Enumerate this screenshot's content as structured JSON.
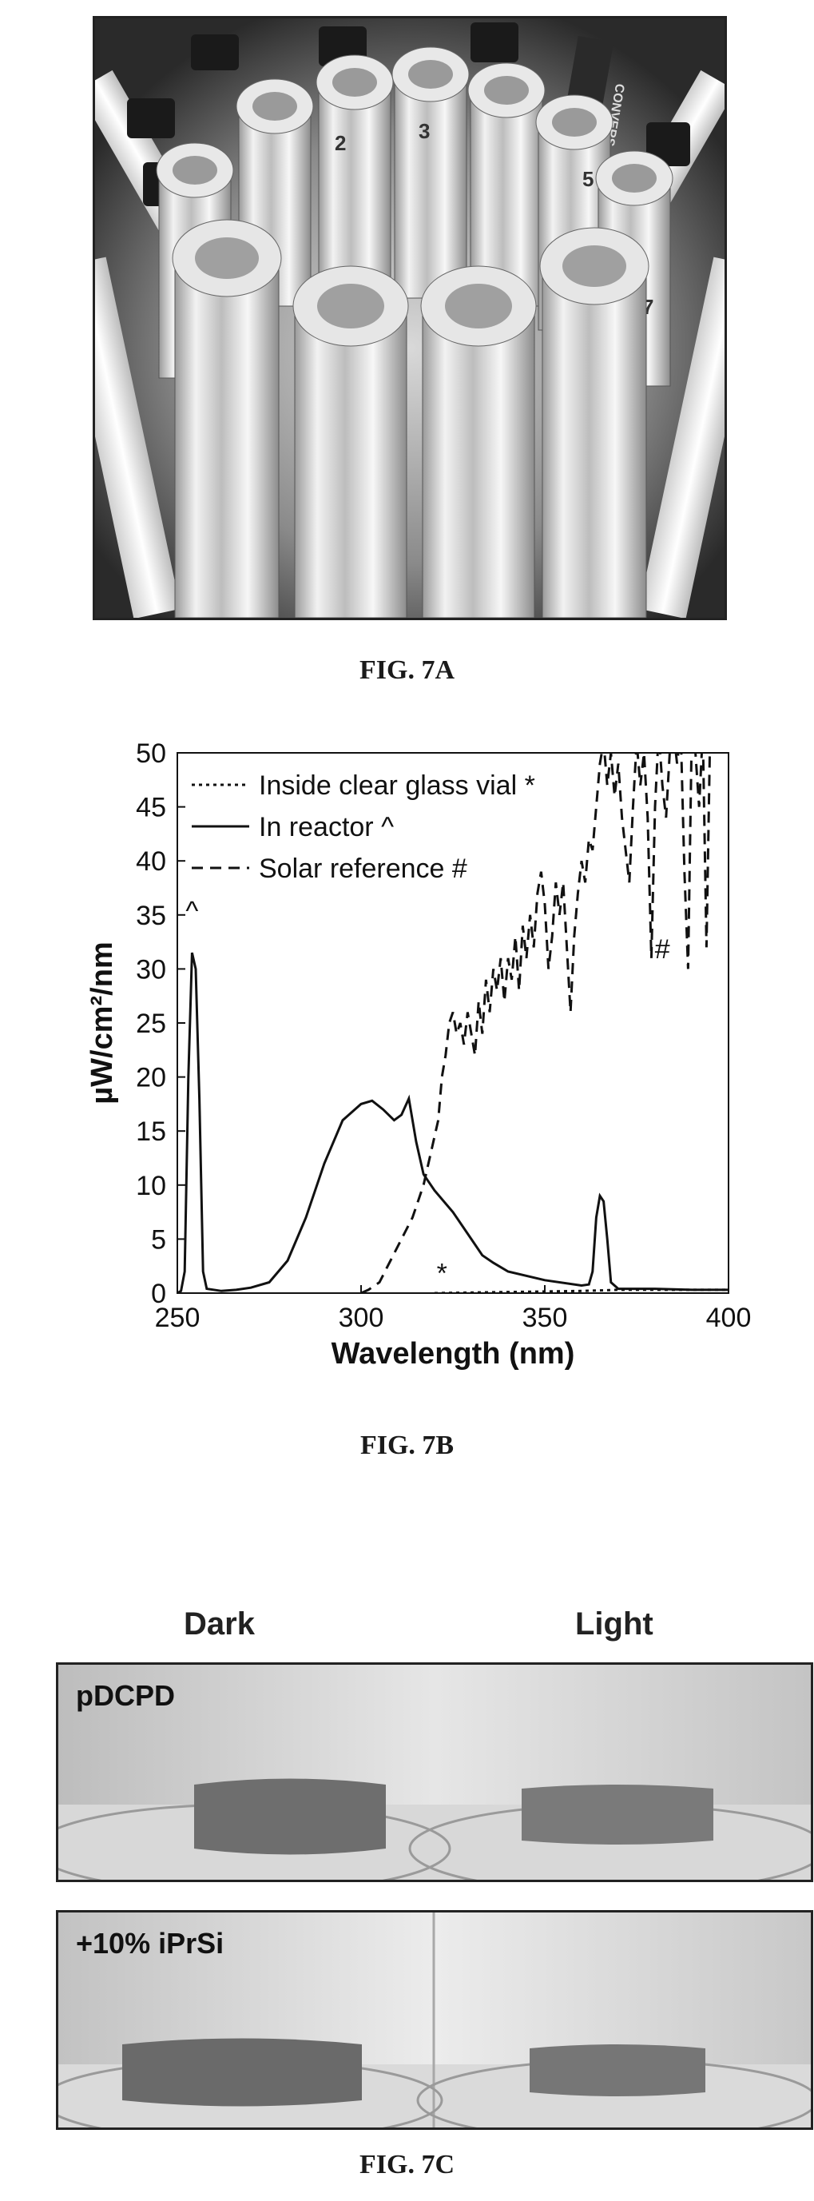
{
  "figure_7a": {
    "caption": "FIG. 7A",
    "vial_numbers": [
      "2",
      "3",
      "5",
      "7"
    ],
    "label_text": "CONVERS"
  },
  "figure_7b": {
    "caption": "FIG. 7B",
    "chart_data": {
      "type": "line",
      "title": "",
      "xlabel": "Wavelength (nm)",
      "ylabel": "µW/cm²/nm",
      "xlim": [
        250,
        400
      ],
      "ylim": [
        0,
        50
      ],
      "x_ticks": [
        250,
        300,
        350,
        400
      ],
      "y_ticks": [
        0,
        5,
        10,
        15,
        20,
        25,
        30,
        35,
        40,
        45,
        50
      ],
      "grid": false,
      "legend_placement": "top-left",
      "series": [
        {
          "name": "Inside clear glass vial *",
          "marker_label": "*",
          "style": "dotted",
          "points": [
            [
              320,
              0
            ],
            [
              340,
              0.1
            ],
            [
              360,
              0.2
            ],
            [
              370,
              0.3
            ],
            [
              380,
              0.3
            ],
            [
              400,
              0.3
            ]
          ]
        },
        {
          "name": "In reactor ^",
          "marker_label": "^",
          "style": "solid",
          "points": [
            [
              250,
              0
            ],
            [
              251,
              0.2
            ],
            [
              252,
              2
            ],
            [
              253,
              20
            ],
            [
              254,
              31.5
            ],
            [
              255,
              30
            ],
            [
              256,
              18
            ],
            [
              257,
              2
            ],
            [
              258,
              0.4
            ],
            [
              262,
              0.2
            ],
            [
              266,
              0.3
            ],
            [
              270,
              0.5
            ],
            [
              275,
              1
            ],
            [
              280,
              3
            ],
            [
              285,
              7
            ],
            [
              290,
              12
            ],
            [
              295,
              16
            ],
            [
              300,
              17.5
            ],
            [
              303,
              17.8
            ],
            [
              306,
              17
            ],
            [
              309,
              16
            ],
            [
              311,
              16.5
            ],
            [
              313,
              18
            ],
            [
              315,
              14
            ],
            [
              317,
              11
            ],
            [
              320,
              9.5
            ],
            [
              325,
              7.5
            ],
            [
              330,
              5
            ],
            [
              333,
              3.5
            ],
            [
              336,
              2.8
            ],
            [
              340,
              2
            ],
            [
              350,
              1.2
            ],
            [
              360,
              0.7
            ],
            [
              362,
              0.8
            ],
            [
              363,
              2
            ],
            [
              364,
              7
            ],
            [
              365,
              9
            ],
            [
              366,
              8.5
            ],
            [
              367,
              5
            ],
            [
              368,
              1
            ],
            [
              370,
              0.4
            ],
            [
              380,
              0.4
            ],
            [
              390,
              0.3
            ],
            [
              400,
              0.3
            ]
          ]
        },
        {
          "name": "Solar reference #",
          "marker_label": "#",
          "style": "dashed",
          "points": [
            [
              300,
              0
            ],
            [
              302,
              0.3
            ],
            [
              305,
              1
            ],
            [
              308,
              3
            ],
            [
              311,
              5
            ],
            [
              314,
              7
            ],
            [
              317,
              10
            ],
            [
              319,
              13
            ],
            [
              321,
              16
            ],
            [
              322,
              20
            ],
            [
              323,
              22
            ],
            [
              324,
              25
            ],
            [
              325,
              26
            ],
            [
              326,
              24
            ],
            [
              327,
              25
            ],
            [
              328,
              23
            ],
            [
              329,
              26
            ],
            [
              330,
              24
            ],
            [
              331,
              22
            ],
            [
              332,
              27
            ],
            [
              333,
              24
            ],
            [
              334,
              29
            ],
            [
              335,
              26
            ],
            [
              336,
              30
            ],
            [
              337,
              28
            ],
            [
              338,
              31
            ],
            [
              339,
              27
            ],
            [
              340,
              31
            ],
            [
              341,
              29
            ],
            [
              342,
              33
            ],
            [
              343,
              28
            ],
            [
              344,
              34
            ],
            [
              345,
              31
            ],
            [
              346,
              35
            ],
            [
              347,
              32
            ],
            [
              348,
              37
            ],
            [
              349,
              39
            ],
            [
              350,
              36
            ],
            [
              351,
              30
            ],
            [
              352,
              33
            ],
            [
              353,
              38
            ],
            [
              354,
              35
            ],
            [
              355,
              38
            ],
            [
              356,
              32
            ],
            [
              357,
              26
            ],
            [
              358,
              33
            ],
            [
              359,
              37
            ],
            [
              360,
              40
            ],
            [
              361,
              38
            ],
            [
              362,
              42
            ],
            [
              363,
              41
            ],
            [
              364,
              45
            ],
            [
              365,
              49
            ],
            [
              366,
              51
            ],
            [
              367,
              47
            ],
            [
              368,
              50
            ],
            [
              369,
              46
            ],
            [
              370,
              49
            ],
            [
              371,
              44
            ],
            [
              372,
              41
            ],
            [
              373,
              38
            ],
            [
              374,
              45
            ],
            [
              375,
              51
            ],
            [
              376,
              47
            ],
            [
              377,
              50
            ],
            [
              378,
              44
            ],
            [
              379,
              31
            ],
            [
              380,
              45
            ],
            [
              381,
              52
            ],
            [
              382,
              47
            ],
            [
              383,
              44
            ],
            [
              384,
              50
            ],
            [
              385,
              52
            ],
            [
              386,
              49
            ],
            [
              387,
              52
            ],
            [
              388,
              39
            ],
            [
              389,
              30
            ],
            [
              390,
              52
            ],
            [
              391,
              50
            ],
            [
              392,
              45
            ],
            [
              393,
              52
            ],
            [
              394,
              32
            ],
            [
              395,
              52
            ],
            [
              396,
              51
            ],
            [
              397,
              52
            ],
            [
              398,
              50
            ],
            [
              400,
              52
            ]
          ]
        }
      ],
      "annotations": [
        {
          "text": "^",
          "x": 254,
          "y": 34.5
        },
        {
          "text": "*",
          "x": 322,
          "y": 1
        },
        {
          "text": "#",
          "x": 382,
          "y": 31
        }
      ]
    }
  },
  "figure_7c": {
    "caption": "FIG. 7C",
    "column_labels": [
      "Dark",
      "Light"
    ],
    "panel_labels": [
      "pDCPD",
      "+10% iPrSi"
    ]
  }
}
